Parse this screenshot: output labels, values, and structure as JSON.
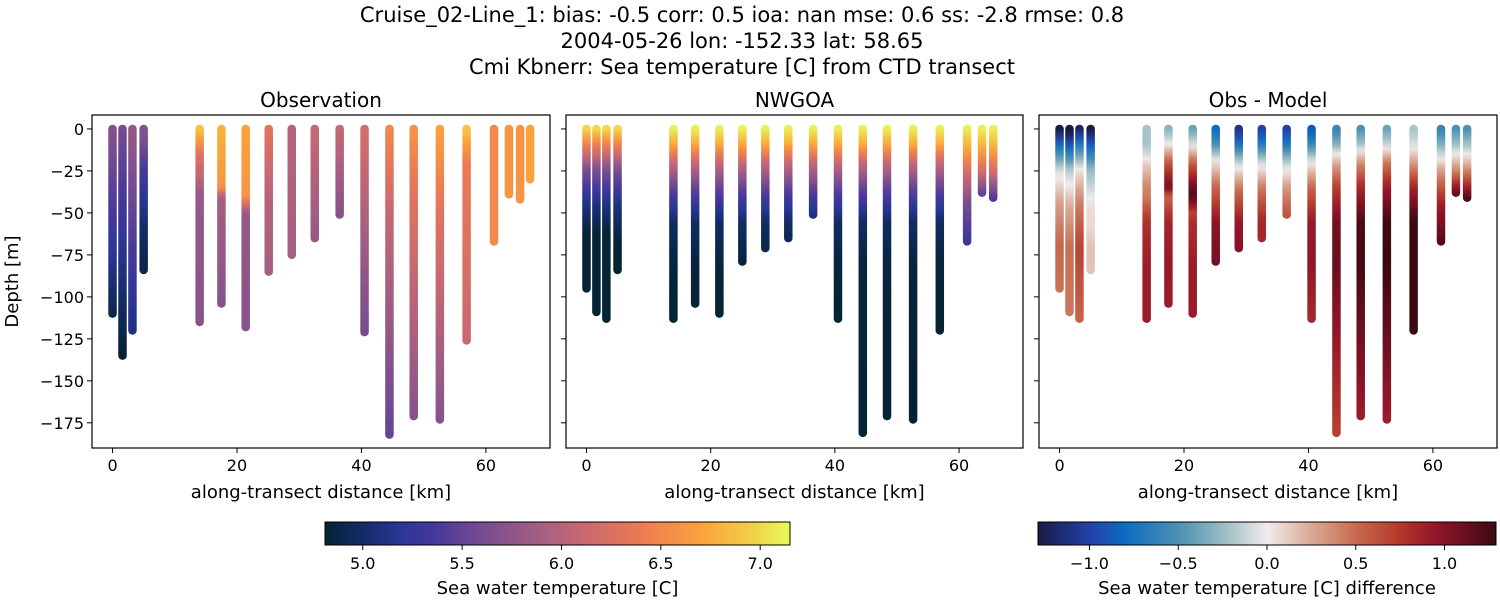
{
  "title_lines": [
    "Cruise_02-Line_1: bias: -0.5  corr: 0.5  ioa: nan  mse: 0.6  ss: -2.8  rmse: 0.8",
    "2004-05-26 lon: -152.33 lat: 58.65",
    "Cmi Kbnerr: Sea temperature [C] from CTD transect"
  ],
  "chart_data": {
    "type": "scatter",
    "panels": [
      {
        "title": "Observation",
        "xlabel": "along-transect distance [km]",
        "ylabel": "Depth [m]",
        "field": "obs",
        "colorbar": 0
      },
      {
        "title": "NWGOA",
        "xlabel": "along-transect distance [km]",
        "ylabel": "",
        "field": "model",
        "colorbar": 0
      },
      {
        "title": "Obs - Model",
        "xlabel": "along-transect distance [km]",
        "ylabel": "",
        "field": "diff",
        "colorbar": 1
      }
    ],
    "xlim": [
      -3.3,
      70.3
    ],
    "ylim": [
      -190,
      8.3
    ],
    "xticks": [
      0,
      20,
      40,
      60
    ],
    "xtick_labels": [
      "0",
      "20",
      "40",
      "60"
    ],
    "yticks": [
      0,
      -25,
      -50,
      -75,
      -100,
      -125,
      -150,
      -175
    ],
    "ytick_labels": [
      "0",
      "−25",
      "−50",
      "−75",
      "−100",
      "−125",
      "−150",
      "−175"
    ],
    "colorbars": [
      {
        "label": "Sea water temperature [C]",
        "colormap": "thermal",
        "range": [
          4.81,
          7.15
        ],
        "ticks": [
          5.0,
          5.5,
          6.0,
          6.5,
          7.0
        ],
        "tick_labels": [
          "5.0",
          "5.5",
          "6.0",
          "6.5",
          "7.0"
        ],
        "stops": [
          [
            4.81,
            "#042333"
          ],
          [
            5.0,
            "#122c66"
          ],
          [
            5.2,
            "#2c3797"
          ],
          [
            5.35,
            "#45379b"
          ],
          [
            5.6,
            "#774c91"
          ],
          [
            5.9,
            "#a65f81"
          ],
          [
            6.1,
            "#c76872"
          ],
          [
            6.4,
            "#ec7b54"
          ],
          [
            6.7,
            "#faa23c"
          ],
          [
            6.95,
            "#f3cd48"
          ],
          [
            7.15,
            "#e8fa5b"
          ]
        ]
      },
      {
        "label": "Sea water temperature [C] difference",
        "colormap": "balance",
        "range": [
          -1.29,
          1.29
        ],
        "ticks": [
          -1.0,
          -0.5,
          0.0,
          0.5,
          1.0
        ],
        "tick_labels": [
          "−1.0",
          "−0.5",
          "0.0",
          "0.5",
          "1.0"
        ],
        "stops": [
          [
            -1.29,
            "#181c43"
          ],
          [
            -1.0,
            "#2540a8"
          ],
          [
            -0.8,
            "#0d6cc2"
          ],
          [
            -0.5,
            "#4b90b2"
          ],
          [
            -0.2,
            "#a9c5c9"
          ],
          [
            0.0,
            "#f1ecec"
          ],
          [
            0.25,
            "#daa996"
          ],
          [
            0.5,
            "#c76b4f"
          ],
          [
            0.75,
            "#b2372b"
          ],
          [
            0.95,
            "#92152a"
          ],
          [
            1.29,
            "#3c0912"
          ]
        ]
      }
    ],
    "casts": [
      {
        "x": 0.0,
        "obs": [
          [
            0,
            5.7
          ],
          [
            60,
            5.3
          ],
          [
            110,
            4.9
          ]
        ],
        "model": [
          [
            0,
            7.0
          ],
          [
            10,
            6.4
          ],
          [
            25,
            5.6
          ],
          [
            45,
            5.1
          ],
          [
            70,
            4.7
          ],
          [
            95,
            4.55
          ]
        ]
      },
      {
        "x": 1.6,
        "obs": [
          [
            0,
            5.6
          ],
          [
            50,
            5.3
          ],
          [
            135,
            4.8
          ]
        ],
        "model": [
          [
            0,
            7.0
          ],
          [
            10,
            6.4
          ],
          [
            25,
            5.6
          ],
          [
            45,
            5.1
          ],
          [
            70,
            4.7
          ],
          [
            109,
            4.5
          ]
        ]
      },
      {
        "x": 3.2,
        "obs": [
          [
            0,
            5.8
          ],
          [
            50,
            5.5
          ],
          [
            120,
            5.1
          ]
        ],
        "model": [
          [
            0,
            7.0
          ],
          [
            10,
            6.4
          ],
          [
            25,
            5.6
          ],
          [
            45,
            5.1
          ],
          [
            70,
            4.7
          ],
          [
            113,
            4.6
          ]
        ]
      },
      {
        "x": 5.0,
        "obs": [
          [
            0,
            5.7
          ],
          [
            30,
            5.3
          ],
          [
            60,
            5.0
          ],
          [
            84,
            4.9
          ]
        ],
        "model": [
          [
            0,
            7.0
          ],
          [
            10,
            6.4
          ],
          [
            25,
            5.6
          ],
          [
            45,
            5.1
          ],
          [
            70,
            4.8
          ],
          [
            84,
            4.75
          ]
        ]
      },
      {
        "x": 14.0,
        "obs": [
          [
            0,
            6.9
          ],
          [
            15,
            6.3
          ],
          [
            40,
            5.8
          ],
          [
            115,
            5.7
          ]
        ],
        "model": [
          [
            0,
            7.1
          ],
          [
            8,
            6.8
          ],
          [
            20,
            6.1
          ],
          [
            35,
            5.5
          ],
          [
            55,
            5.0
          ],
          [
            80,
            4.85
          ],
          [
            113,
            4.8
          ]
        ]
      },
      {
        "x": 17.5,
        "obs": [
          [
            0,
            6.8
          ],
          [
            35,
            6.6
          ],
          [
            40,
            5.9
          ],
          [
            104,
            5.7
          ]
        ],
        "model": [
          [
            0,
            7.1
          ],
          [
            8,
            6.8
          ],
          [
            20,
            6.1
          ],
          [
            35,
            5.5
          ],
          [
            55,
            5.0
          ],
          [
            80,
            4.85
          ],
          [
            104,
            4.8
          ]
        ]
      },
      {
        "x": 21.4,
        "obs": [
          [
            0,
            6.7
          ],
          [
            40,
            6.6
          ],
          [
            50,
            5.8
          ],
          [
            118,
            5.7
          ]
        ],
        "model": [
          [
            0,
            7.1
          ],
          [
            8,
            6.8
          ],
          [
            20,
            6.1
          ],
          [
            35,
            5.5
          ],
          [
            55,
            5.0
          ],
          [
            80,
            4.85
          ],
          [
            110,
            4.8
          ]
        ]
      },
      {
        "x": 25.1,
        "obs": [
          [
            0,
            6.3
          ],
          [
            40,
            6.0
          ],
          [
            85,
            5.9
          ]
        ],
        "model": [
          [
            0,
            7.1
          ],
          [
            8,
            6.8
          ],
          [
            20,
            6.1
          ],
          [
            35,
            5.5
          ],
          [
            55,
            5.0
          ],
          [
            79,
            4.85
          ]
        ]
      },
      {
        "x": 28.8,
        "obs": [
          [
            0,
            6.0
          ],
          [
            75,
            5.9
          ]
        ],
        "model": [
          [
            0,
            7.1
          ],
          [
            8,
            6.8
          ],
          [
            20,
            6.1
          ],
          [
            35,
            5.5
          ],
          [
            55,
            5.0
          ],
          [
            71,
            4.9
          ]
        ]
      },
      {
        "x": 32.5,
        "obs": [
          [
            0,
            6.1
          ],
          [
            65,
            5.8
          ]
        ],
        "model": [
          [
            0,
            7.1
          ],
          [
            8,
            6.8
          ],
          [
            20,
            6.1
          ],
          [
            35,
            5.5
          ],
          [
            55,
            5.0
          ],
          [
            65,
            4.95
          ]
        ]
      },
      {
        "x": 36.5,
        "obs": [
          [
            0,
            6.1
          ],
          [
            51,
            5.7
          ]
        ],
        "model": [
          [
            0,
            7.1
          ],
          [
            8,
            6.8
          ],
          [
            20,
            6.1
          ],
          [
            35,
            5.5
          ],
          [
            51,
            5.1
          ]
        ]
      },
      {
        "x": 40.5,
        "obs": [
          [
            0,
            6.2
          ],
          [
            121,
            5.6
          ]
        ],
        "model": [
          [
            0,
            7.1
          ],
          [
            8,
            6.8
          ],
          [
            20,
            6.1
          ],
          [
            35,
            5.5
          ],
          [
            55,
            5.0
          ],
          [
            80,
            4.85
          ],
          [
            113,
            4.8
          ]
        ]
      },
      {
        "x": 44.5,
        "obs": [
          [
            0,
            6.5
          ],
          [
            50,
            6.1
          ],
          [
            182,
            5.5
          ]
        ],
        "model": [
          [
            0,
            7.1
          ],
          [
            8,
            6.8
          ],
          [
            20,
            6.1
          ],
          [
            35,
            5.5
          ],
          [
            55,
            5.0
          ],
          [
            80,
            4.85
          ],
          [
            181,
            4.8
          ]
        ]
      },
      {
        "x": 48.4,
        "obs": [
          [
            0,
            6.6
          ],
          [
            40,
            6.3
          ],
          [
            171,
            5.7
          ]
        ],
        "model": [
          [
            0,
            7.1
          ],
          [
            8,
            6.8
          ],
          [
            20,
            6.1
          ],
          [
            35,
            5.5
          ],
          [
            55,
            5.0
          ],
          [
            80,
            4.85
          ],
          [
            171,
            4.8
          ]
        ]
      },
      {
        "x": 52.6,
        "obs": [
          [
            0,
            6.7
          ],
          [
            50,
            6.3
          ],
          [
            173,
            5.7
          ]
        ],
        "model": [
          [
            0,
            7.1
          ],
          [
            8,
            6.8
          ],
          [
            20,
            6.1
          ],
          [
            35,
            5.5
          ],
          [
            55,
            5.0
          ],
          [
            80,
            4.85
          ],
          [
            173,
            4.8
          ]
        ]
      },
      {
        "x": 56.9,
        "obs": [
          [
            0,
            6.9
          ],
          [
            20,
            6.4
          ],
          [
            126,
            6.1
          ]
        ],
        "model": [
          [
            0,
            7.1
          ],
          [
            8,
            6.8
          ],
          [
            20,
            6.1
          ],
          [
            35,
            5.5
          ],
          [
            55,
            5.0
          ],
          [
            80,
            4.85
          ],
          [
            120,
            4.8
          ]
        ]
      },
      {
        "x": 61.3,
        "obs": [
          [
            0,
            6.5
          ],
          [
            67,
            6.5
          ]
        ],
        "model": [
          [
            0,
            7.1
          ],
          [
            10,
            6.8
          ],
          [
            25,
            6.2
          ],
          [
            45,
            5.6
          ],
          [
            67,
            5.3
          ]
        ]
      },
      {
        "x": 63.7,
        "obs": [
          [
            0,
            6.6
          ],
          [
            39,
            6.6
          ]
        ],
        "model": [
          [
            0,
            7.1
          ],
          [
            10,
            6.8
          ],
          [
            25,
            6.2
          ],
          [
            38,
            5.5
          ]
        ]
      },
      {
        "x": 65.5,
        "obs": [
          [
            0,
            6.6
          ],
          [
            42,
            6.6
          ]
        ],
        "model": [
          [
            0,
            7.1
          ],
          [
            10,
            6.8
          ],
          [
            25,
            6.2
          ],
          [
            41,
            5.4
          ]
        ]
      },
      {
        "x": 67.1,
        "obs": [
          [
            0,
            6.7
          ],
          [
            30,
            6.7
          ]
        ],
        "model": null
      }
    ]
  }
}
